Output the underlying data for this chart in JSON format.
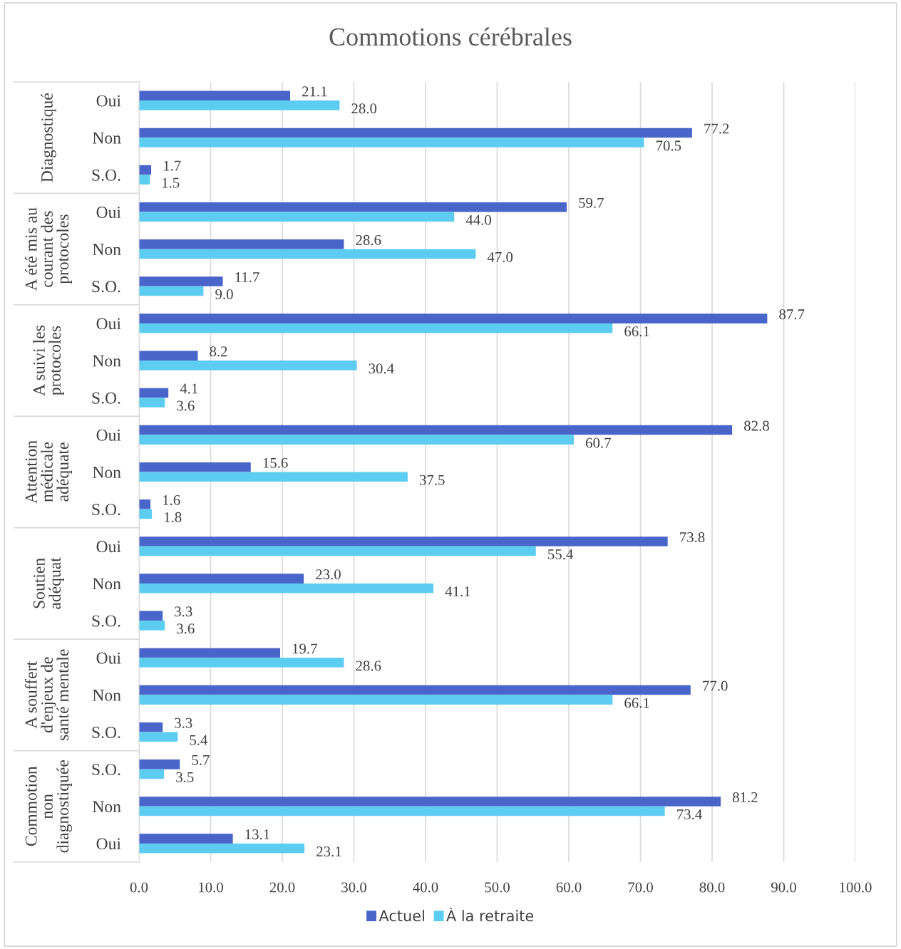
{
  "chart_data": {
    "type": "bar",
    "orientation": "horizontal",
    "title": "Commotions cérébrales",
    "categories": [
      "Oui",
      "Non",
      "S.O.",
      "Oui",
      "Non",
      "S.O.",
      "Oui",
      "Non",
      "S.O.",
      "Oui",
      "Non",
      "S.O.",
      "Oui",
      "Non",
      "S.O.",
      "Oui",
      "Non",
      "S.O.",
      "S.O.",
      "Non",
      "Oui"
    ],
    "annotations": [
      "Diagnostiqué",
      "A été mis au\ncourant des\nprotocoles",
      "A suivi les\nprotocoles",
      "Attention\nmédicale\nadéquate",
      "Soutien\nadéquat",
      "A souffert\nd'enjeux de\nsanté mentale",
      "Commotion\nnon\ndiagnostiquée"
    ],
    "series": [
      {
        "name": "Actuel",
        "color": "#4a65c9",
        "values": [
          21.1,
          77.2,
          1.7,
          59.7,
          28.6,
          11.7,
          87.7,
          8.2,
          4.1,
          82.8,
          15.6,
          1.6,
          73.8,
          23.0,
          3.3,
          19.7,
          77.0,
          3.3,
          5.7,
          81.2,
          13.1
        ],
        "value_labels": [
          "21.1",
          "77.2",
          "1.7",
          "59.7",
          "28.6",
          "11.7",
          "87.7",
          "8.2",
          "4.1",
          "82.8",
          "15.6",
          "1.6",
          "73.8",
          "23.0",
          "3.3",
          "19.7",
          "77.0",
          "3.3",
          "5.7",
          "81.2",
          "13.1"
        ]
      },
      {
        "name": "À la retraite",
        "color": "#5ccdf0",
        "values": [
          28.0,
          70.5,
          1.5,
          44.0,
          47.0,
          9.0,
          66.1,
          30.4,
          3.6,
          60.7,
          37.5,
          1.8,
          55.4,
          41.1,
          3.6,
          28.6,
          66.1,
          5.4,
          3.5,
          73.4,
          23.1
        ],
        "value_labels": [
          "28.0",
          "70.5",
          "1.5",
          "44.0",
          "47.0",
          "9.0",
          "66.1",
          "30.4",
          "3.6",
          "60.7",
          "37.5",
          "1.8",
          "55.4",
          "41.1",
          "3.6",
          "28.6",
          "66.1",
          "5.4",
          "3.5",
          "73.4",
          "23.1"
        ]
      }
    ],
    "xlim": [
      0,
      100
    ],
    "xticks": [
      {
        "value": 0,
        "label": "0.0"
      },
      {
        "value": 10,
        "label": "10.0"
      },
      {
        "value": 20,
        "label": "20.0"
      },
      {
        "value": 30,
        "label": "30.0"
      },
      {
        "value": 40,
        "label": "40.0"
      },
      {
        "value": 50,
        "label": "50.0"
      },
      {
        "value": 60,
        "label": "60.0"
      },
      {
        "value": 70,
        "label": "70.0"
      },
      {
        "value": 80,
        "label": "80.0"
      },
      {
        "value": 90,
        "label": "90.0"
      },
      {
        "value": 100,
        "label": "100.0"
      }
    ],
    "grid": "x",
    "legend": "bottom"
  }
}
